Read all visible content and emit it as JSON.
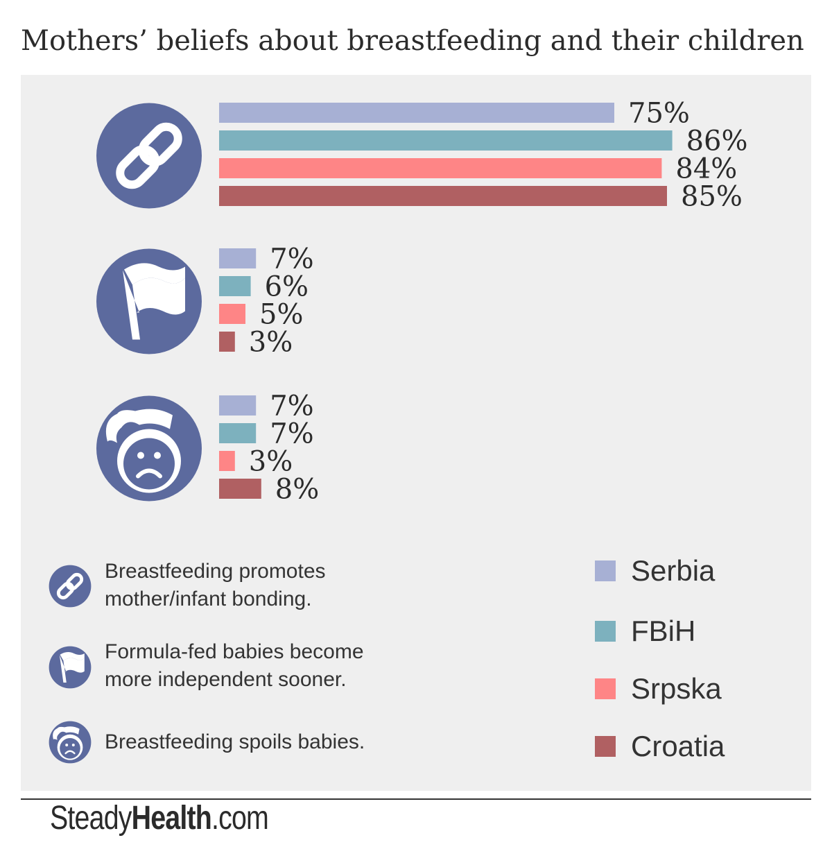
{
  "title": "Mothers’ beliefs about breastfeeding and their children",
  "colors": {
    "panel": "#efefef",
    "icon": "#5c6a9e",
    "Serbia": "#a7b0d4",
    "FBiH": "#7db1be",
    "Srpska": "#fe8586",
    "Croatia": "#b06062"
  },
  "chart_data": {
    "type": "bar",
    "orientation": "horizontal",
    "categories": [
      "Breastfeeding promotes mother/infant bonding.",
      "Formula-fed babies become more independent sooner.",
      "Breastfeeding spoils babies."
    ],
    "category_icons": [
      "chain-link-icon",
      "flag-icon",
      "baby-face-icon"
    ],
    "series": [
      {
        "name": "Serbia",
        "values": [
          75,
          7,
          7
        ],
        "labels": [
          "75%",
          "7%",
          "7%"
        ]
      },
      {
        "name": "FBiH",
        "values": [
          86,
          6,
          7
        ],
        "labels": [
          "86%",
          "6%",
          "7%"
        ]
      },
      {
        "name": "Srpska",
        "values": [
          84,
          5,
          3
        ],
        "labels": [
          "84%",
          "5%",
          "3%"
        ]
      },
      {
        "name": "Croatia",
        "values": [
          85,
          3,
          8
        ],
        "labels": [
          "85%",
          "3%",
          "8%"
        ]
      }
    ],
    "unit": "%",
    "legend_position": "bottom-right",
    "grid": false
  },
  "captions": {
    "line1": [
      "Breastfeeding promotes",
      "mother/infant bonding."
    ],
    "line2": [
      "Formula-fed babies become",
      "more independent sooner."
    ],
    "line3": [
      "Breastfeeding spoils babies."
    ]
  },
  "legend": [
    "Serbia",
    "FBiH",
    "Srpska",
    "Croatia"
  ],
  "footer": {
    "brand_light": "Steady",
    "brand_bold": "Health",
    "brand_suffix": ".com"
  }
}
